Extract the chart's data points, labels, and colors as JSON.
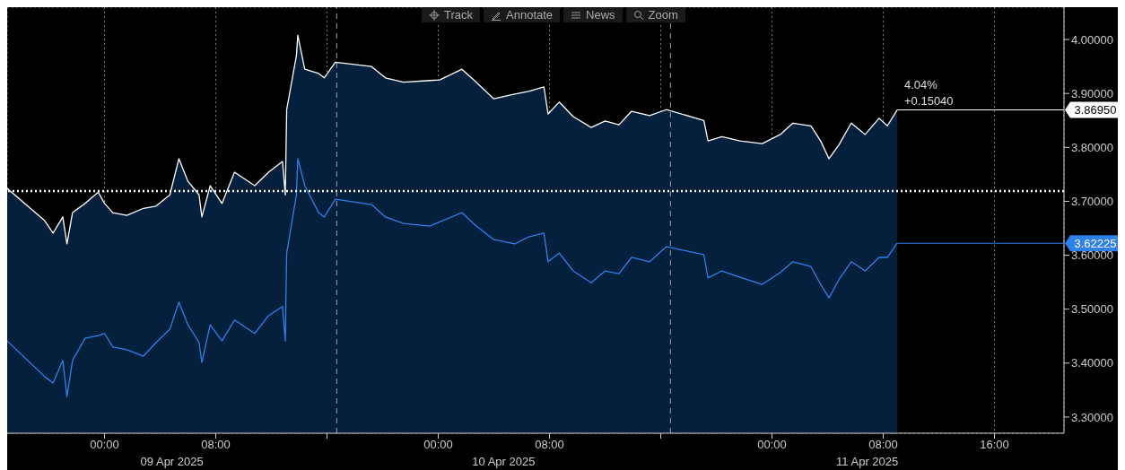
{
  "chart_data": {
    "type": "line",
    "x": [
      "2025-04-08T17:00",
      "2025-04-08T19:42",
      "2025-04-08T20:18",
      "2025-04-08T21:00",
      "2025-04-08T21:18",
      "2025-04-08T21:42",
      "2025-04-08T22:36",
      "2025-04-08T23:33",
      "2025-04-09T00:00",
      "2025-04-09T00:36",
      "2025-04-09T01:36",
      "2025-04-09T02:48",
      "2025-04-09T03:42",
      "2025-04-09T04:42",
      "2025-04-09T05:21",
      "2025-04-09T06:00",
      "2025-04-09T06:48",
      "2025-04-09T07:00",
      "2025-04-09T07:36",
      "2025-04-09T08:27",
      "2025-04-09T09:21",
      "2025-04-09T10:48",
      "2025-04-09T11:48",
      "2025-04-09T12:48",
      "2025-04-09T13:00",
      "2025-04-09T13:06",
      "2025-04-09T13:48",
      "2025-04-09T13:54",
      "2025-04-09T14:24",
      "2025-04-09T15:24",
      "2025-04-09T15:48",
      "2025-04-09T16:36",
      "2025-04-09T19:12",
      "2025-04-09T20:12",
      "2025-04-09T21:30",
      "2025-04-09T23:24",
      "2025-04-10T00:06",
      "2025-04-10T01:42",
      "2025-04-10T02:36",
      "2025-04-10T04:00",
      "2025-04-10T05:30",
      "2025-04-10T06:30",
      "2025-04-10T07:36",
      "2025-04-10T07:54",
      "2025-04-10T08:42",
      "2025-04-10T09:42",
      "2025-04-10T11:00",
      "2025-04-10T12:00",
      "2025-04-10T13:00",
      "2025-04-10T13:54",
      "2025-04-10T15:12",
      "2025-04-10T16:24",
      "2025-04-10T19:06",
      "2025-04-10T19:24",
      "2025-04-10T20:24",
      "2025-04-10T21:42",
      "2025-04-10T23:18",
      "2025-04-11T00:36",
      "2025-04-11T01:30",
      "2025-04-11T02:48",
      "2025-04-11T03:30",
      "2025-04-11T04:06",
      "2025-04-11T04:48",
      "2025-04-11T05:42",
      "2025-04-11T06:42",
      "2025-04-11T07:42",
      "2025-04-11T08:18",
      "2025-04-11T09:00"
    ],
    "series": [
      {
        "type": "area",
        "color": "#ffffff",
        "values": [
          3.724,
          3.664,
          3.641,
          3.671,
          3.621,
          3.679,
          3.696,
          3.717,
          3.696,
          3.679,
          3.674,
          3.687,
          3.691,
          3.712,
          3.779,
          3.737,
          3.712,
          3.671,
          3.729,
          3.696,
          3.754,
          3.729,
          3.754,
          3.774,
          3.712,
          3.87,
          3.97,
          4.008,
          3.945,
          3.937,
          3.929,
          3.958,
          3.95,
          3.929,
          3.921,
          3.924,
          3.925,
          3.945,
          3.924,
          3.89,
          3.899,
          3.904,
          3.912,
          3.862,
          3.884,
          3.857,
          3.837,
          3.849,
          3.842,
          3.867,
          3.859,
          3.87,
          3.85,
          3.812,
          3.82,
          3.812,
          3.807,
          3.824,
          3.845,
          3.84,
          3.812,
          3.779,
          3.804,
          3.845,
          3.824,
          3.854,
          3.84,
          3.8695
        ]
      },
      {
        "color": "#2f80e8",
        "values": [
          3.441,
          3.375,
          3.363,
          3.405,
          3.338,
          3.405,
          3.446,
          3.451,
          3.455,
          3.43,
          3.425,
          3.413,
          3.438,
          3.463,
          3.513,
          3.471,
          3.438,
          3.401,
          3.471,
          3.441,
          3.48,
          3.455,
          3.488,
          3.505,
          3.441,
          3.604,
          3.712,
          3.779,
          3.729,
          3.679,
          3.671,
          3.704,
          3.694,
          3.671,
          3.659,
          3.654,
          3.662,
          3.679,
          3.657,
          3.629,
          3.621,
          3.634,
          3.641,
          3.588,
          3.604,
          3.571,
          3.549,
          3.571,
          3.566,
          3.596,
          3.588,
          3.616,
          3.601,
          3.558,
          3.571,
          3.559,
          3.546,
          3.568,
          3.588,
          3.579,
          3.546,
          3.521,
          3.554,
          3.588,
          3.571,
          3.596,
          3.596,
          3.62225
        ]
      }
    ],
    "xlim": [
      "2025-04-08T17:00",
      "2025-04-11T21:00"
    ],
    "xticks": [
      {
        "value": "2025-04-09T00:00",
        "label": "00:00"
      },
      {
        "value": "2025-04-09T08:00",
        "label": "08:00"
      },
      {
        "value": "2025-04-09T16:00",
        "label": null
      },
      {
        "value": "2025-04-10T00:00",
        "label": "00:00"
      },
      {
        "value": "2025-04-10T08:00",
        "label": "08:00"
      },
      {
        "value": "2025-04-10T16:00",
        "label": null
      },
      {
        "value": "2025-04-11T00:00",
        "label": "00:00"
      },
      {
        "value": "2025-04-11T08:00",
        "label": "08:00"
      },
      {
        "value": "2025-04-11T16:00",
        "label": "16:00"
      }
    ],
    "ylim": [
      3.27,
      4.06
    ],
    "yticks": [
      {
        "value": 3.3,
        "label": "3.30000"
      },
      {
        "value": 3.4,
        "label": "3.40000"
      },
      {
        "value": 3.5,
        "label": "3.50000"
      },
      {
        "value": 3.6,
        "label": "3.60000"
      },
      {
        "value": 3.7,
        "label": "3.70000"
      },
      {
        "value": 3.8,
        "label": "3.80000"
      },
      {
        "value": 3.9,
        "label": "3.90000"
      },
      {
        "value": 4.0,
        "label": "4.00000"
      }
    ],
    "grid": true,
    "marker": "none",
    "ref_lines": [
      {
        "axis": "y",
        "value": 3.7191,
        "color": "#ffffff",
        "line_style": "dotted"
      },
      {
        "axis": "y",
        "value": 3.8695,
        "label": "3.86950",
        "color": "#ffffff",
        "line_style": "solid"
      },
      {
        "axis": "y",
        "value": 3.62225,
        "label": "3.62225",
        "color": "#2f80e8",
        "line_style": "solid"
      },
      {
        "axis": "x",
        "value": "2025-04-09T16:42",
        "color": "#9aa4b0",
        "line_style": "dashed"
      },
      {
        "axis": "x",
        "value": "2025-04-10T16:42",
        "color": "#9aa4b0",
        "line_style": "dashed"
      }
    ],
    "annotations": [
      "Track",
      "Annotate",
      "News",
      "Zoom",
      "4.04%",
      "+0.15040",
      "09 Apr 2025",
      "10 Apr 2025",
      "11 Apr 2025"
    ]
  }
}
